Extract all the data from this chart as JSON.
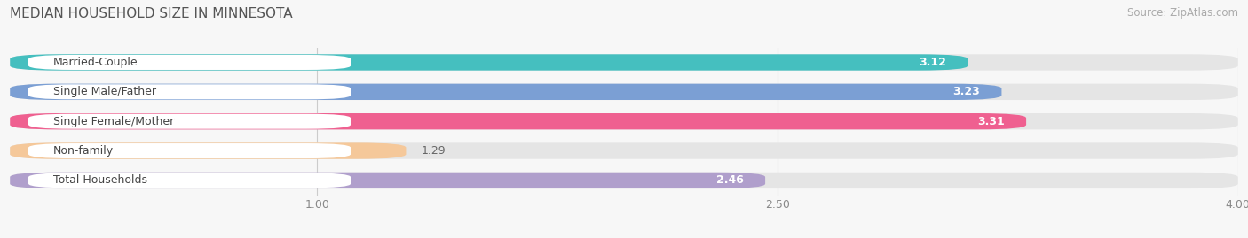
{
  "title": "MEDIAN HOUSEHOLD SIZE IN MINNESOTA",
  "source": "Source: ZipAtlas.com",
  "categories": [
    "Married-Couple",
    "Single Male/Father",
    "Single Female/Mother",
    "Non-family",
    "Total Households"
  ],
  "values": [
    3.12,
    3.23,
    3.31,
    1.29,
    2.46
  ],
  "bar_colors": [
    "#45BFBF",
    "#7B9FD4",
    "#EF6090",
    "#F5C89A",
    "#B09FCC"
  ],
  "xlim": [
    0,
    4.0
  ],
  "xticks": [
    1.0,
    2.5,
    4.0
  ],
  "xticklabels": [
    "1.00",
    "2.50",
    "4.00"
  ],
  "title_fontsize": 11,
  "source_fontsize": 8.5,
  "label_fontsize": 9,
  "value_fontsize": 9,
  "background_color": "#f7f7f7",
  "bar_bg_color": "#e5e5e5",
  "label_bg_color": "#ffffff",
  "label_text_color": "#444444",
  "value_text_color_inside": "#ffffff",
  "value_text_color_outside": "#666666"
}
